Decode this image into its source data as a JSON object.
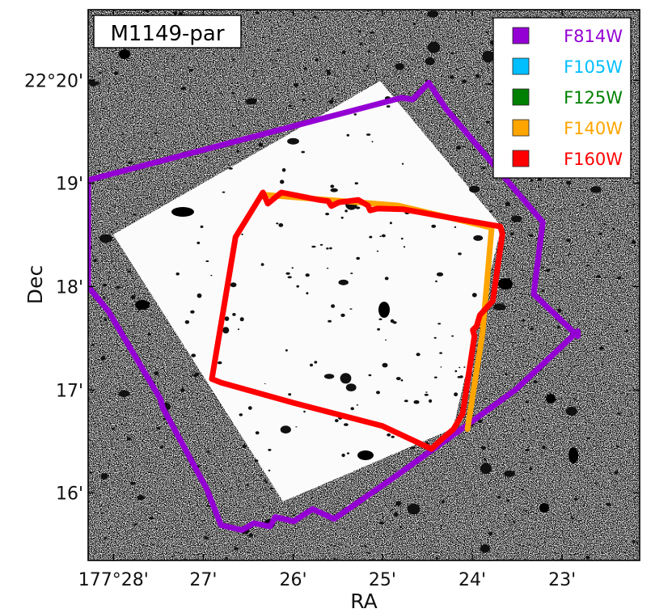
{
  "chart_data": {
    "type": "footprint",
    "title": "M1149-par",
    "xlabel": "RA",
    "ylabel": "Dec",
    "xlim": [
      177.4714,
      177.3689
    ],
    "ylim": [
      22.2558,
      22.3447
    ],
    "x_ticks": [
      {
        "value": 177.4667,
        "label": "177°28'"
      },
      {
        "value": 177.45,
        "label": "27'"
      },
      {
        "value": 177.4333,
        "label": "26'"
      },
      {
        "value": 177.4167,
        "label": "25'"
      },
      {
        "value": 177.4,
        "label": "24'"
      },
      {
        "value": 177.3833,
        "label": "23'"
      }
    ],
    "y_ticks": [
      {
        "value": 22.3333,
        "label": "22°20'"
      },
      {
        "value": 22.3167,
        "label": "19'"
      },
      {
        "value": 22.3,
        "label": "18'"
      },
      {
        "value": 22.2833,
        "label": "17'"
      },
      {
        "value": 22.2667,
        "label": "16'"
      }
    ],
    "legend_position": "top-right",
    "series": [
      {
        "name": "F814W",
        "color": "#9400d3",
        "points": [
          [
            177.4714,
            22.3172
          ],
          [
            177.4131,
            22.3305
          ],
          [
            177.4111,
            22.3302
          ],
          [
            177.4081,
            22.3329
          ],
          [
            177.4048,
            22.3286
          ],
          [
            177.3869,
            22.3104
          ],
          [
            177.3886,
            22.2988
          ],
          [
            177.3804,
            22.292
          ],
          [
            177.3804,
            22.2928
          ],
          [
            177.3919,
            22.2834
          ],
          [
            177.3998,
            22.2784
          ],
          [
            177.4149,
            22.269
          ],
          [
            177.4257,
            22.2625
          ],
          [
            177.4297,
            22.2641
          ],
          [
            177.4332,
            22.2621
          ],
          [
            177.4366,
            22.2628
          ],
          [
            177.4376,
            22.2613
          ],
          [
            177.4406,
            22.2618
          ],
          [
            177.4428,
            22.2607
          ],
          [
            177.4467,
            22.2615
          ],
          [
            177.4494,
            22.2674
          ],
          [
            177.4575,
            22.2804
          ],
          [
            177.458,
            22.2819
          ],
          [
            177.4676,
            22.296
          ],
          [
            177.4714,
            22.3
          ]
        ]
      },
      {
        "name": "F140W",
        "color": "#ffa500",
        "points": [
          [
            177.4385,
            22.3148
          ],
          [
            177.4138,
            22.3131
          ],
          [
            177.3964,
            22.3095
          ],
          [
            177.3981,
            22.2925
          ],
          [
            177.4009,
            22.277
          ]
        ]
      },
      {
        "name": "F160W",
        "color": "#ff0000",
        "points": [
          [
            177.438,
            22.3134
          ],
          [
            177.4355,
            22.3152
          ],
          [
            177.432,
            22.3146
          ],
          [
            177.4285,
            22.314
          ],
          [
            177.4268,
            22.3138
          ],
          [
            177.4262,
            22.313
          ],
          [
            177.4248,
            22.3136
          ],
          [
            177.4212,
            22.314
          ],
          [
            177.4194,
            22.3131
          ],
          [
            177.419,
            22.3123
          ],
          [
            177.4176,
            22.3126
          ],
          [
            177.4129,
            22.3125
          ],
          [
            177.404,
            22.3111
          ],
          [
            177.3948,
            22.3097
          ],
          [
            177.3944,
            22.3085
          ],
          [
            177.3962,
            22.2977
          ],
          [
            177.3986,
            22.2954
          ],
          [
            177.3992,
            22.2936
          ],
          [
            177.3999,
            22.293
          ],
          [
            177.3996,
            22.292
          ],
          [
            177.4018,
            22.2795
          ],
          [
            177.4035,
            22.277
          ],
          [
            177.4055,
            22.2755
          ],
          [
            177.4076,
            22.2738
          ],
          [
            177.4167,
            22.2775
          ],
          [
            177.4331,
            22.2812
          ],
          [
            177.4467,
            22.2845
          ],
          [
            177.4484,
            22.2851
          ],
          [
            177.444,
            22.308
          ],
          [
            177.4389,
            22.3152
          ]
        ]
      }
    ],
    "legend": [
      {
        "name": "F814W",
        "color": "#9400d3"
      },
      {
        "name": "F105W",
        "color": "#00bfff"
      },
      {
        "name": "F125W",
        "color": "#008000"
      },
      {
        "name": "F140W",
        "color": "#ffa500"
      },
      {
        "name": "F160W",
        "color": "#ff0000"
      }
    ]
  }
}
